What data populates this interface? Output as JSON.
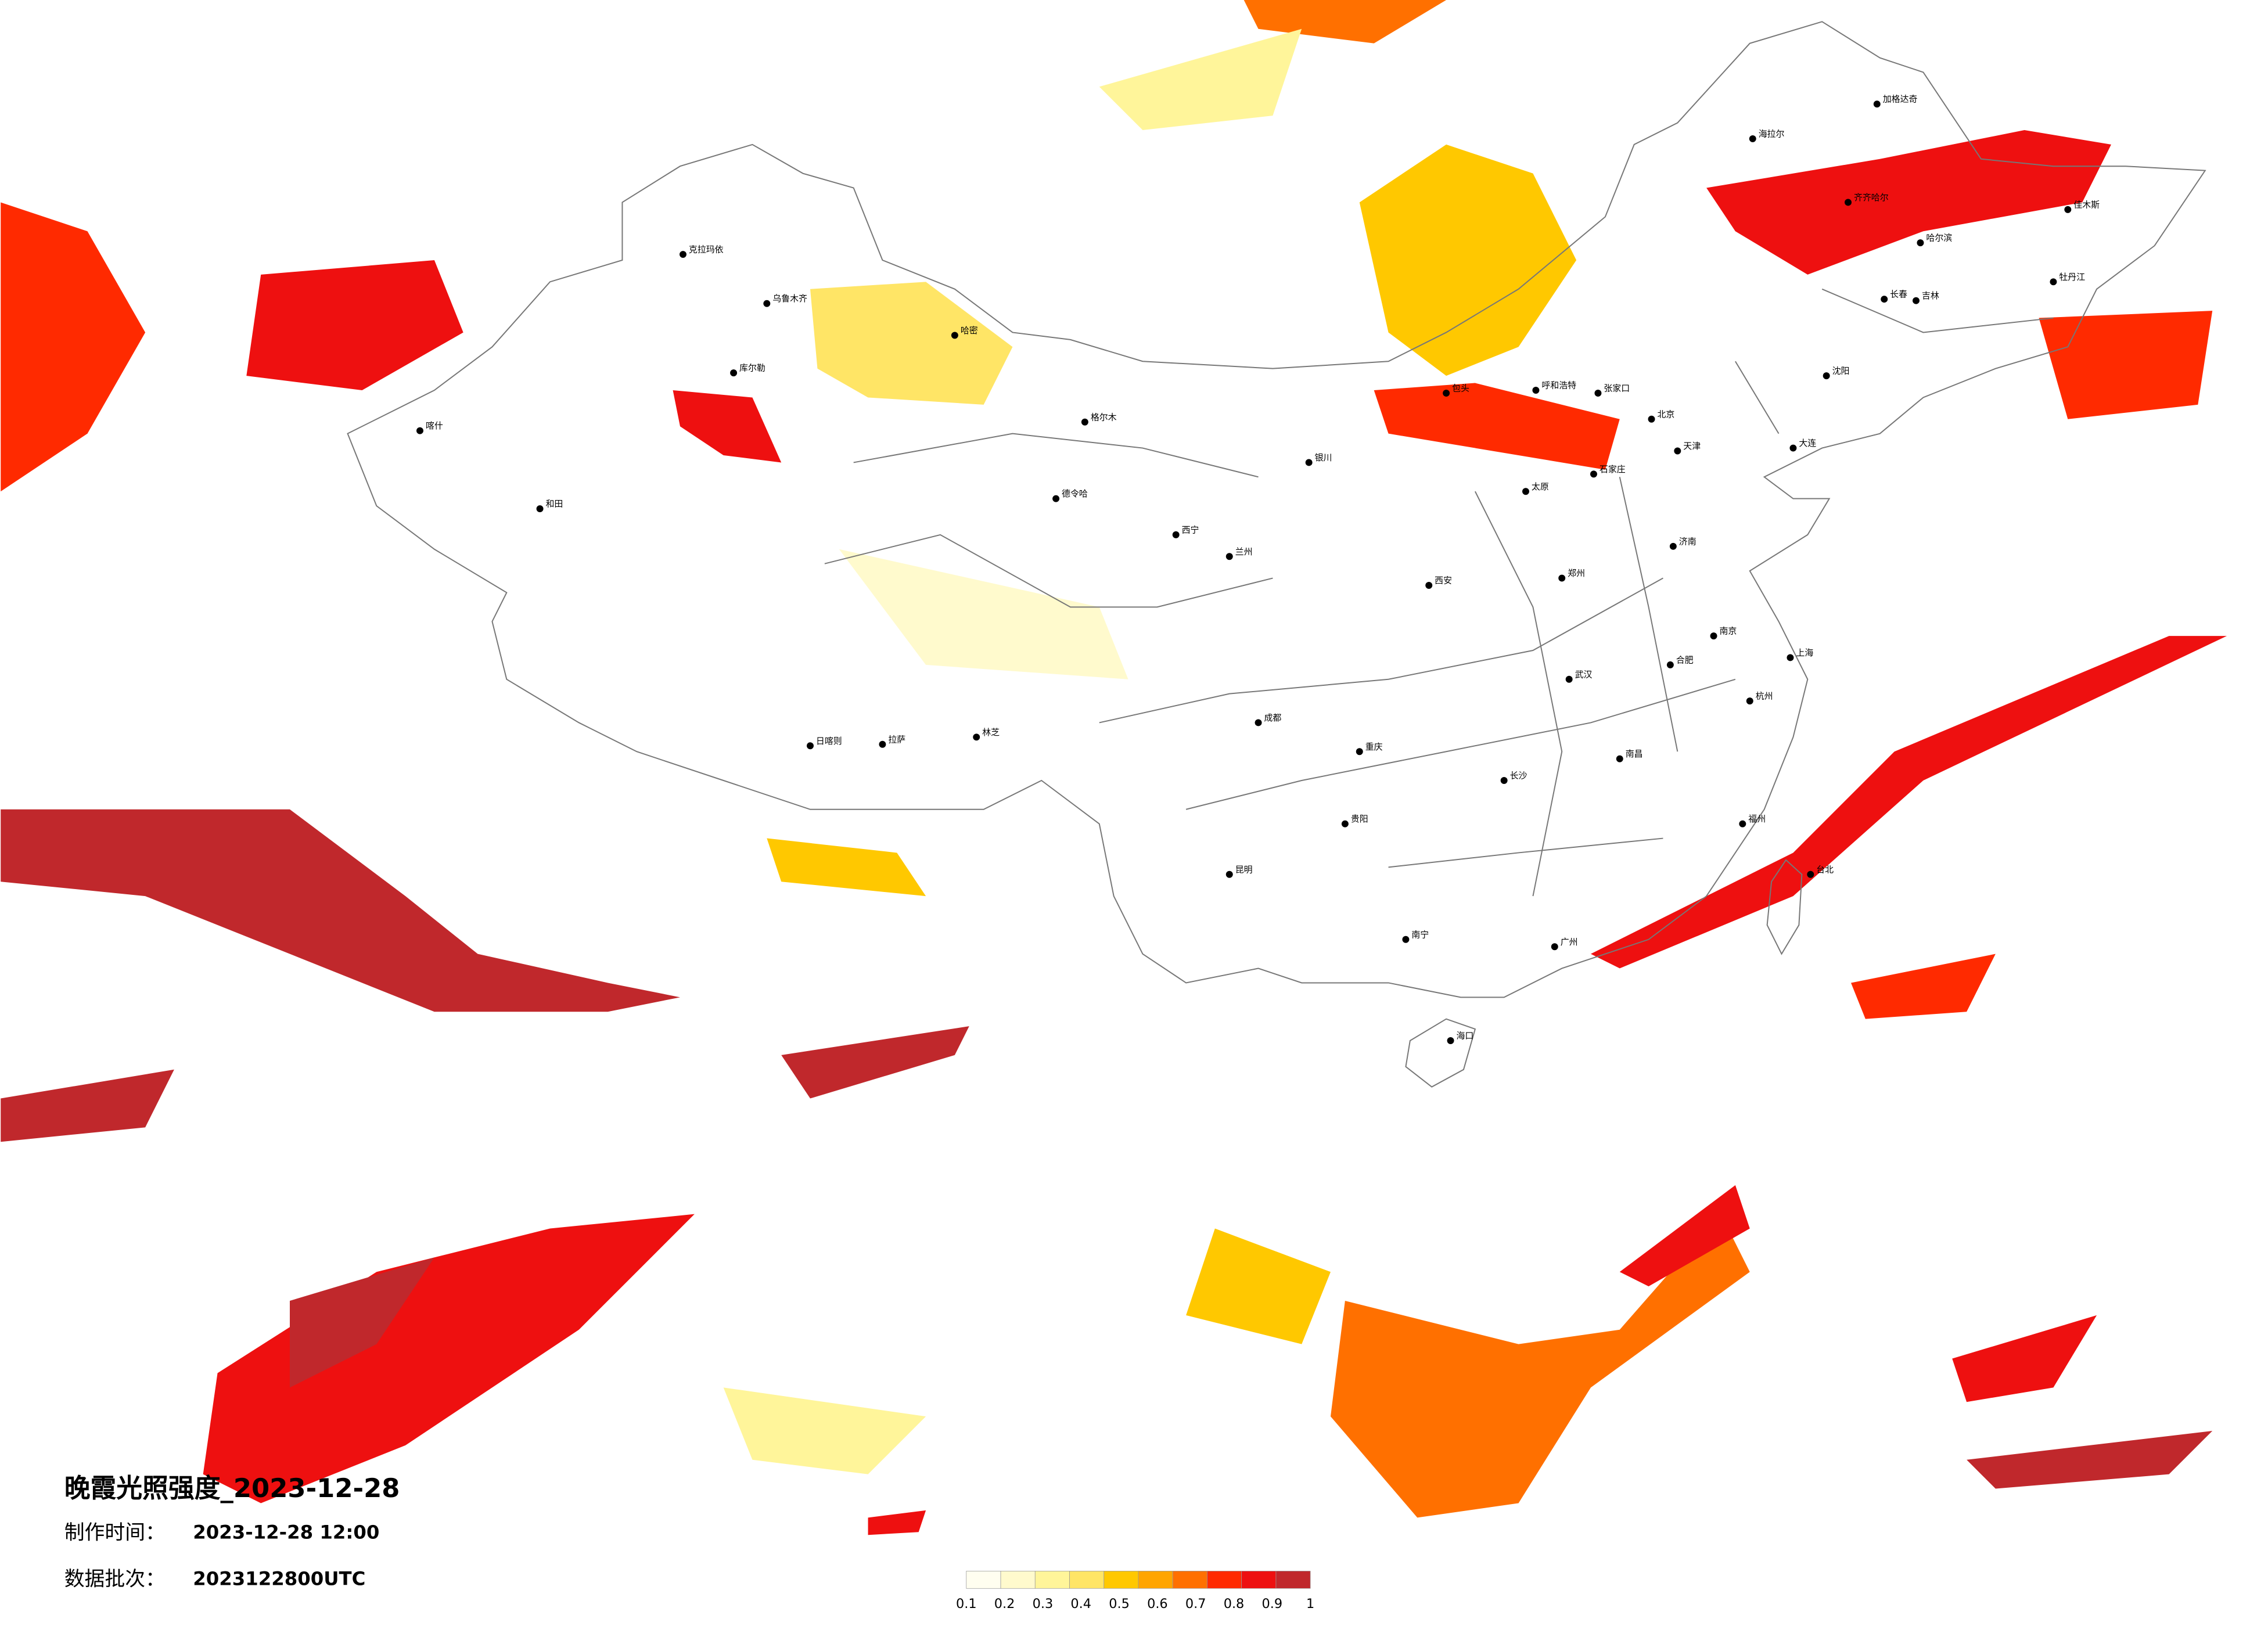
{
  "title": "晚霞光照强度_2023-12-28",
  "made_time": {
    "label": "制作时间：",
    "value": "2023-12-28 12:00"
  },
  "batch": {
    "label": "数据批次：",
    "value": "2023122800UTC"
  },
  "colorbar": {
    "ticks": [
      0.1,
      0.2,
      0.3,
      0.4,
      0.5,
      0.6,
      0.7,
      0.8,
      0.9,
      1
    ],
    "colors": [
      "#fffef0",
      "#fffacd",
      "#fff59a",
      "#ffe566",
      "#ffc800",
      "#ffa500",
      "#ff7000",
      "#ff2a00",
      "#ee1010",
      "#c0282c"
    ]
  },
  "cities": [
    "北京",
    "天津",
    "石家庄",
    "太原",
    "呼和浩特",
    "沈阳",
    "长春",
    "哈尔滨",
    "济南",
    "郑州",
    "西安",
    "兰州",
    "西宁",
    "银川",
    "乌鲁木齐",
    "拉萨",
    "成都",
    "重庆",
    "贵阳",
    "昆明",
    "南宁",
    "广州",
    "长沙",
    "武汉",
    "南昌",
    "合肥",
    "南京",
    "上海",
    "杭州",
    "福州",
    "台北",
    "海口",
    "喀什",
    "和田",
    "克拉玛依",
    "库尔勒",
    "哈密",
    "格尔木",
    "德令哈",
    "日喀则",
    "林芝",
    "齐齐哈尔",
    "加格达奇",
    "海拉尔",
    "大连",
    "张家口",
    "包头",
    "吉林",
    "佳木斯",
    "牡丹江"
  ]
}
